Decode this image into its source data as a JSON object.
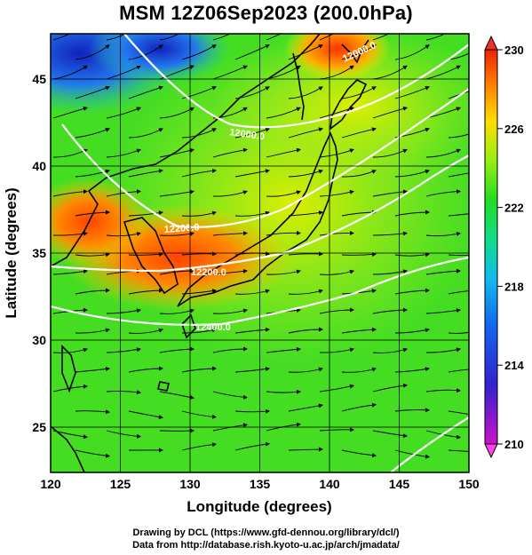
{
  "title": "MSM 12Z06Sep2023 (200.0hPa)",
  "map": {
    "lon_min": 120,
    "lon_max": 150,
    "lat_min": 22.4,
    "lat_max": 47.6,
    "x_ticks": [
      120,
      125,
      130,
      135,
      140,
      145,
      150
    ],
    "y_ticks": [
      25,
      30,
      35,
      40,
      45
    ],
    "xlabel": "Longitude (degrees)",
    "ylabel": "Latitude  (degrees)",
    "grid": true,
    "contour_labels": [
      "12000.0",
      "12200.0",
      "12400.0"
    ]
  },
  "colorbar": {
    "min": 210,
    "max": 230,
    "labels": [
      "230",
      "226",
      "222",
      "218",
      "214",
      "210"
    ],
    "colors": [
      "#cc11cc",
      "#2222cc",
      "#1199ee",
      "#11ddaa",
      "#22dd22",
      "#aaee11",
      "#ffdd00",
      "#ff7700",
      "#ee2200"
    ]
  },
  "credits": {
    "line1": "Drawing by DCL (https://www.gfd-dennou.org/library/dcl/)",
    "line2": "Data from http://database.rish.kyoto-u.ac.jp/arch/jmadata/"
  }
}
